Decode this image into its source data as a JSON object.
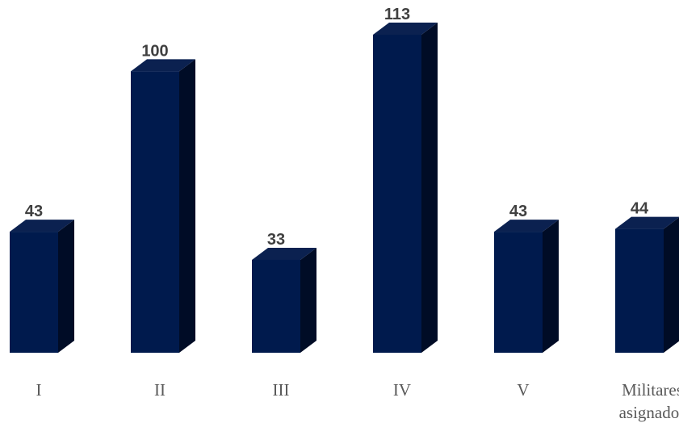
{
  "chart_data": {
    "type": "bar",
    "categories": [
      "I",
      "II",
      "III",
      "IV",
      "V",
      "Militares asignados"
    ],
    "values": [
      43,
      100,
      33,
      113,
      43,
      44
    ],
    "category_label_lines": [
      [
        "I"
      ],
      [
        "II"
      ],
      [
        "III"
      ],
      [
        "IV"
      ],
      [
        "V"
      ],
      [
        "Militares",
        "asignados"
      ]
    ],
    "data_labels": [
      "43",
      "100",
      "33",
      "113",
      "43",
      "44"
    ],
    "ylim": [
      0,
      113
    ],
    "grid": false,
    "legend": "none",
    "style": "3d-column"
  },
  "colors": {
    "bar_front": "#001a4d",
    "bar_top": "#0b2150",
    "bar_side": "#000c26",
    "value_text": "#404040",
    "category_text": "#595959"
  }
}
